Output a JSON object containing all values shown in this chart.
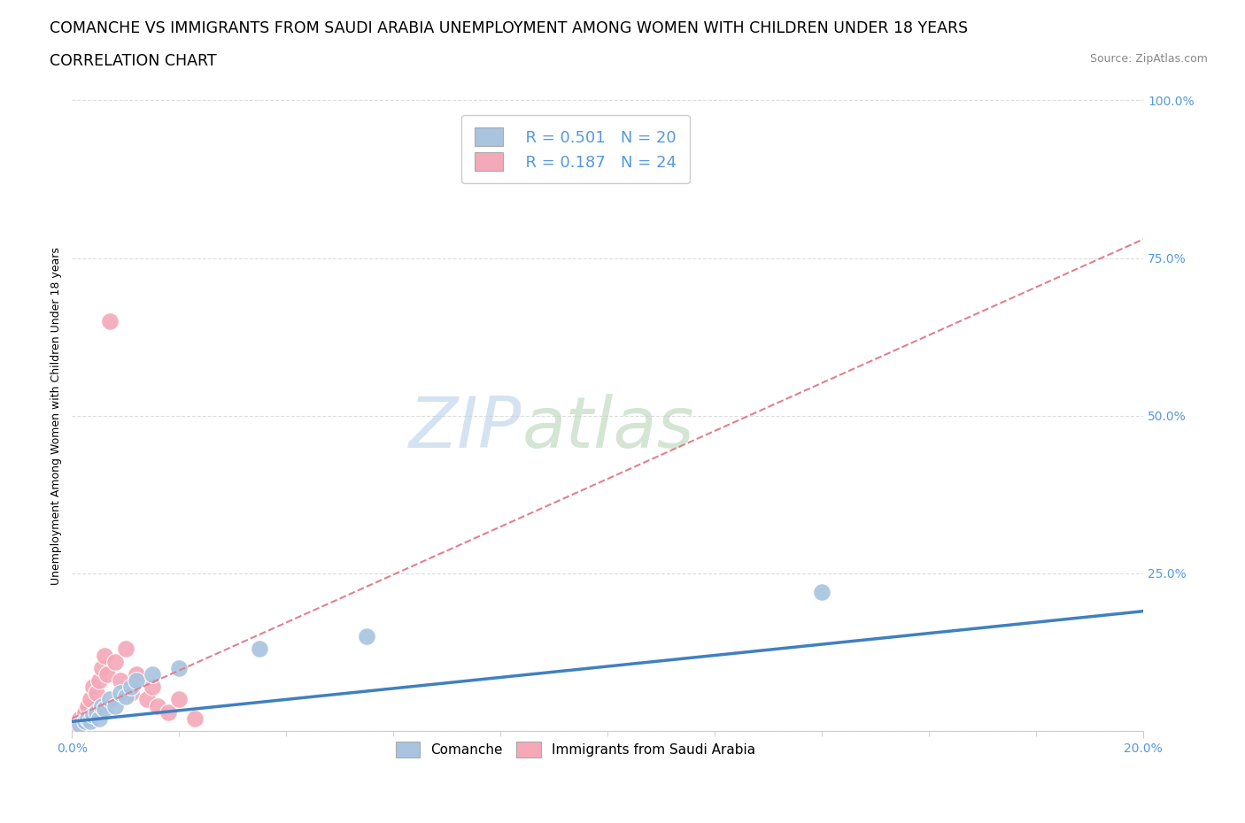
{
  "title_line1": "COMANCHE VS IMMIGRANTS FROM SAUDI ARABIA UNEMPLOYMENT AMONG WOMEN WITH CHILDREN UNDER 18 YEARS",
  "title_line2": "CORRELATION CHART",
  "source_text": "Source: ZipAtlas.com",
  "xlim": [
    0.0,
    20.0
  ],
  "ylim": [
    0.0,
    100.0
  ],
  "ylabel": "Unemployment Among Women with Children Under 18 years",
  "watermark_zip": "ZIP",
  "watermark_atlas": "atlas",
  "legend_r1": "R = 0.501",
  "legend_n1": "N = 20",
  "legend_r2": "R = 0.187",
  "legend_n2": "N = 24",
  "comanche_color": "#a8c4e0",
  "comanche_edge": "#7aaad0",
  "saudi_color": "#f4a8b8",
  "saudi_edge": "#e080a0",
  "comanche_trend_color": "#4080c0",
  "saudi_trend_color": "#e08090",
  "grid_color": "#dddddd",
  "tick_color": "#5599dd",
  "comanche_x": [
    0.15,
    0.25,
    0.3,
    0.35,
    0.4,
    0.45,
    0.5,
    0.55,
    0.6,
    0.7,
    0.8,
    0.9,
    1.0,
    1.1,
    1.2,
    1.5,
    2.0,
    3.5,
    5.5,
    14.0
  ],
  "comanche_y": [
    1.0,
    1.5,
    2.0,
    1.5,
    2.5,
    3.0,
    2.0,
    4.0,
    3.5,
    5.0,
    4.0,
    6.0,
    5.5,
    7.0,
    8.0,
    9.0,
    10.0,
    13.0,
    15.0,
    22.0
  ],
  "saudi_x": [
    0.1,
    0.15,
    0.2,
    0.25,
    0.3,
    0.35,
    0.4,
    0.45,
    0.5,
    0.55,
    0.6,
    0.65,
    0.7,
    0.8,
    0.9,
    1.0,
    1.1,
    1.2,
    1.4,
    1.5,
    1.6,
    1.8,
    2.0,
    2.3
  ],
  "saudi_y": [
    1.0,
    2.0,
    1.5,
    3.0,
    4.0,
    5.0,
    7.0,
    6.0,
    8.0,
    10.0,
    12.0,
    9.0,
    65.0,
    11.0,
    8.0,
    13.0,
    6.0,
    9.0,
    5.0,
    7.0,
    4.0,
    3.0,
    5.0,
    2.0
  ],
  "comanche_trend_x": [
    0.0,
    20.0
  ],
  "comanche_trend_y": [
    1.5,
    19.0
  ],
  "saudi_trend_x": [
    0.0,
    20.0
  ],
  "saudi_trend_y": [
    2.0,
    78.0
  ],
  "background_color": "#ffffff",
  "plot_bg_color": "#ffffff",
  "title_fontsize": 12.5,
  "subtitle_fontsize": 12.5,
  "axis_label_fontsize": 9,
  "tick_fontsize": 10,
  "legend_fontsize": 13,
  "watermark_color_zip": "#b8cfe8",
  "watermark_color_atlas": "#b8d4b8",
  "watermark_fontsize": 58
}
